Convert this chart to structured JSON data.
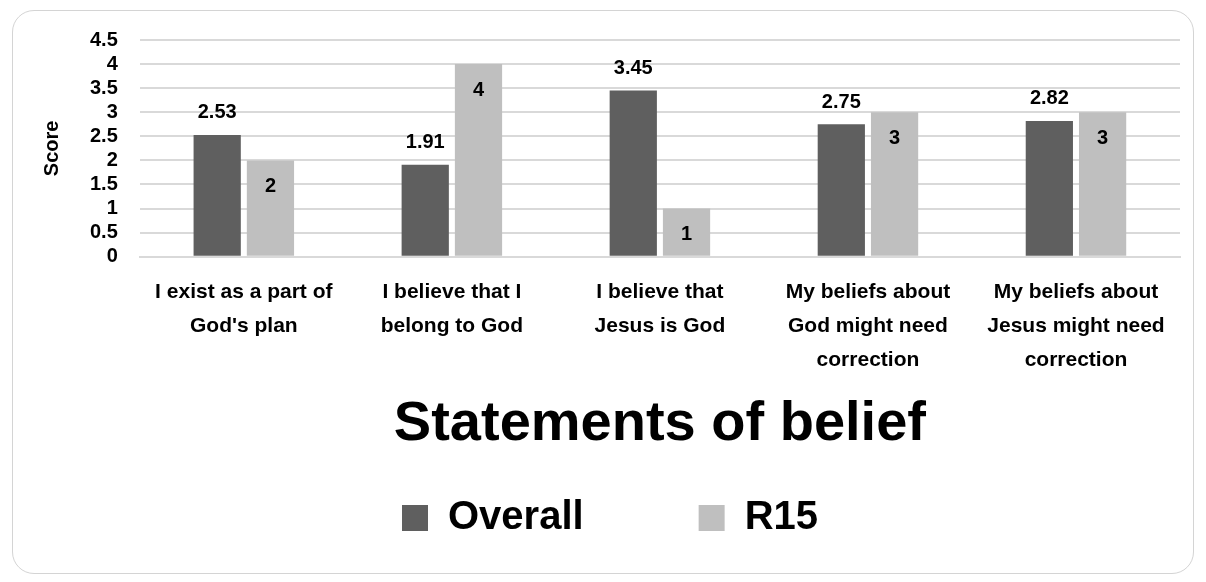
{
  "chart_data": {
    "type": "bar",
    "xlabel": "Statements of belief",
    "ylabel": "Score",
    "categories": [
      "I exist as a part of God's plan",
      "I believe that I belong to God",
      "I believe that Jesus is God",
      "My beliefs about God might need correction",
      "My beliefs about Jesus might need correction"
    ],
    "series": [
      {
        "name": "Overall",
        "color": "#5f5f5f",
        "values": [
          2.53,
          1.91,
          3.45,
          2.75,
          2.82
        ]
      },
      {
        "name": "R15",
        "color": "#bfbfbf",
        "values": [
          2,
          4,
          1,
          3,
          3
        ]
      }
    ],
    "ylim": [
      0,
      4.5
    ],
    "yticks": [
      0,
      0.5,
      1,
      1.5,
      2,
      2.5,
      3,
      3.5,
      4,
      4.5
    ],
    "grid": "y",
    "legend": "bottom",
    "data_labels": true
  }
}
